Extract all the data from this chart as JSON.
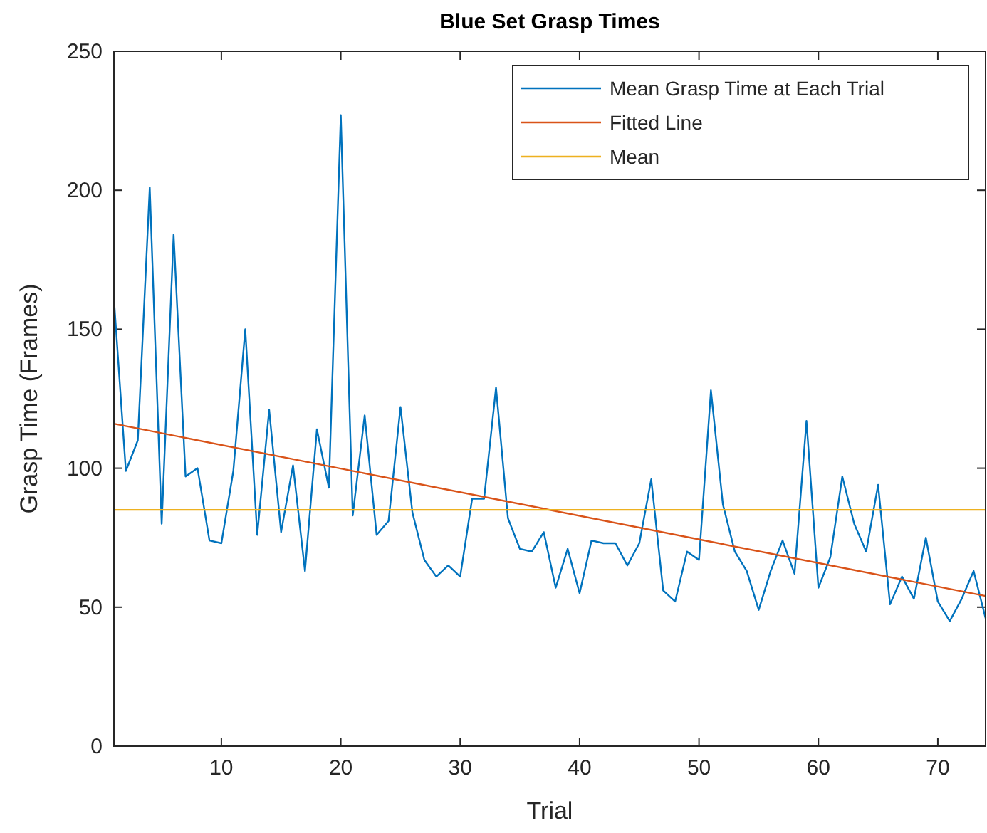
{
  "chart_data": {
    "type": "line",
    "title": "Blue Set Grasp Times",
    "xlabel": "Trial",
    "ylabel": "Grasp Time (Frames)",
    "x": [
      1,
      2,
      3,
      4,
      5,
      6,
      7,
      8,
      9,
      10,
      11,
      12,
      13,
      14,
      15,
      16,
      17,
      18,
      19,
      20,
      21,
      22,
      23,
      24,
      25,
      26,
      27,
      28,
      29,
      30,
      31,
      32,
      33,
      34,
      35,
      36,
      37,
      38,
      39,
      40,
      41,
      42,
      43,
      44,
      45,
      46,
      47,
      48,
      49,
      50,
      51,
      52,
      53,
      54,
      55,
      56,
      57,
      58,
      59,
      60,
      61,
      62,
      63,
      64,
      65,
      66,
      67,
      68,
      69,
      70,
      71,
      72,
      73,
      74
    ],
    "series": [
      {
        "name": "Mean Grasp Time at Each Trial",
        "color": "#0072bd",
        "values": [
          161,
          99,
          110,
          201,
          80,
          184,
          97,
          100,
          74,
          73,
          99,
          150,
          76,
          121,
          77,
          101,
          63,
          114,
          93,
          227,
          83,
          119,
          76,
          81,
          122,
          84,
          67,
          61,
          65,
          61,
          89,
          89,
          129,
          82,
          71,
          70,
          77,
          57,
          71,
          55,
          74,
          73,
          73,
          65,
          73,
          96,
          56,
          52,
          70,
          67,
          128,
          87,
          70,
          63,
          49,
          63,
          74,
          62,
          117,
          57,
          68,
          97,
          80,
          70,
          94,
          51,
          61,
          53,
          75,
          52,
          45,
          53,
          63,
          46
        ]
      },
      {
        "name": "Fitted Line",
        "color": "#d95319",
        "x": [
          1,
          74
        ],
        "values": [
          116,
          54
        ]
      }
    ],
    "ref_lines": [
      {
        "axis": "y",
        "value": 85,
        "label": "Mean",
        "color": "#edb120"
      }
    ],
    "xlim": [
      1,
      74
    ],
    "xticks": [
      10,
      20,
      30,
      40,
      50,
      60,
      70
    ],
    "ylim": [
      0,
      250
    ],
    "yticks": [
      0,
      50,
      100,
      150,
      200,
      250
    ],
    "grid": false,
    "legend": "top right",
    "marker": "none",
    "line_style": "solid"
  }
}
